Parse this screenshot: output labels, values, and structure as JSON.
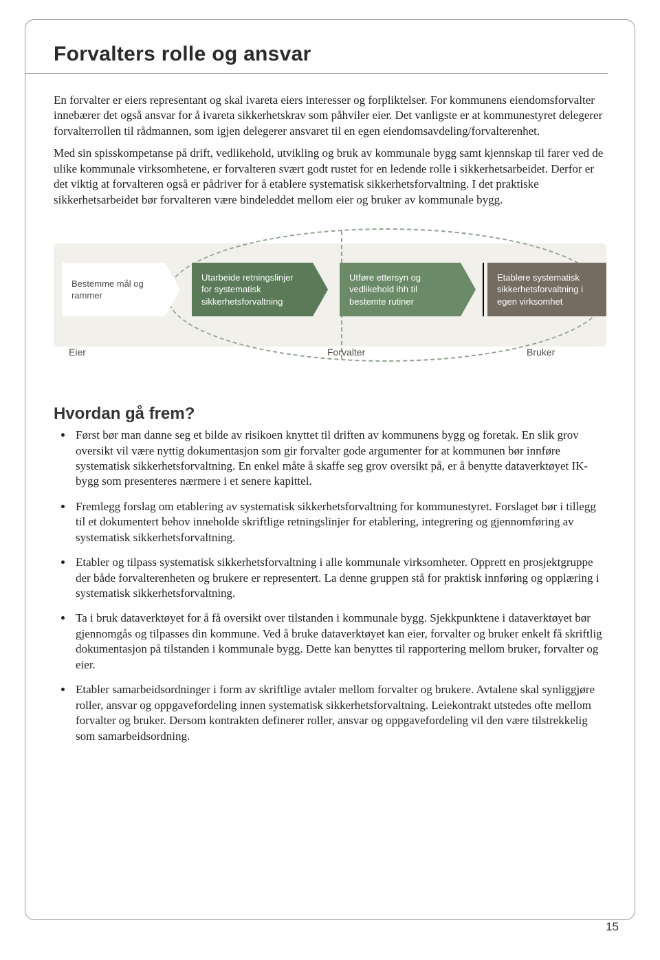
{
  "title": "Forvalters rolle og ansvar",
  "paragraphs": {
    "p1": "En forvalter er eiers representant og skal ivareta eiers interesser og forpliktelser. For kommunens eiendomsforvalter innebærer det også ansvar for å ivareta sikkerhetskrav som påhviler eier. Det vanligste er at kommunestyret delegerer forvalterrollen til rådmannen, som igjen delegerer ansvaret til en egen eiendomsavdeling/forvalterenhet.",
    "p2": "Med sin spisskompetanse på drift, vedlikehold, utvikling og bruk av kommunale bygg samt kjennskap til farer ved de ulike kommunale virksomhetene, er forvalteren svært godt rustet for en ledende rolle i sikkerhetsarbeidet. Derfor er det viktig at forvalteren også er pådriver for å etablere systematisk sikkerhetsforvaltning. I det praktiske sikkerhetsarbeidet bør forvalteren være bindeleddet mellom eier og bruker av kommunale bygg."
  },
  "diagram": {
    "bg_color": "#f1f0eb",
    "ellipse_border": "#8fa38d",
    "nodes": {
      "n1": {
        "text": "Bestemme mål og rammer",
        "bg": "#ffffff",
        "fg": "#4c4c47"
      },
      "n2": {
        "text": "Utarbeide retningslinjer for systematisk sikkerhetsforvaltning",
        "bg": "#5a7a58",
        "fg": "#ffffff"
      },
      "n3": {
        "text": "Utføre ettersyn og vedlikehold ihh til bestemte rutiner",
        "bg": "#6b8a67",
        "fg": "#ffffff"
      },
      "n4": {
        "text": "Etablere systematisk sikkerhetsforvaltning i egen virksomhet",
        "bg": "#746b61",
        "fg": "#ffffff"
      }
    },
    "labels": {
      "l1": "Eier",
      "l2": "Forvalter",
      "l3": "Bruker"
    }
  },
  "section2": {
    "heading": "Hvordan gå frem?",
    "items": {
      "b1": "Først bør man danne seg et bilde av risikoen knyttet til driften av kommunens bygg og foretak. En slik grov oversikt vil være nyttig dokumentasjon som gir forvalter gode argumenter for at kommunen bør innføre systematisk sikkerhetsforvaltning. En enkel måte å skaffe seg grov oversikt på, er å benytte dataverktøyet IK-bygg som presenteres nærmere i et senere kapittel.",
      "b2": "Fremlegg forslag om etablering av systematisk sikkerhetsforvaltning for kommunestyret. Forslaget bør i tillegg til et dokumentert behov inneholde skriftlige retningslinjer for etablering, integrering og gjennomføring av systematisk sikkerhetsforvaltning.",
      "b3": "Etabler og tilpass systematisk sikkerhetsforvaltning i alle kommunale virksomheter. Opprett en prosjektgruppe der både forvalterenheten og brukere er representert. La denne gruppen stå for praktisk innføring og opplæring i systematisk sikkerhetsforvaltning.",
      "b4": "Ta i bruk dataverktøyet for å få oversikt over tilstanden i kommunale bygg. Sjekkpunktene i dataverktøyet bør gjennomgås og tilpasses din kommune. Ved å bruke dataverktøyet kan eier, forvalter og bruker enkelt få skriftlig dokumentasjon på tilstanden i kommunale bygg. Dette kan benyttes til rapportering mellom bruker, forvalter og eier.",
      "b5": "Etabler samarbeidsordninger i form av skriftlige avtaler mellom forvalter og brukere. Avtalene skal synliggjøre roller, ansvar og oppgavefordeling innen systematisk sikkerhetsforvaltning. Leiekontrakt utstedes ofte mellom forvalter og bruker. Dersom kontrakten definerer roller, ansvar og oppgavefordeling vil den være tilstrekkelig som samarbeidsordning."
    }
  },
  "page_number": "15"
}
